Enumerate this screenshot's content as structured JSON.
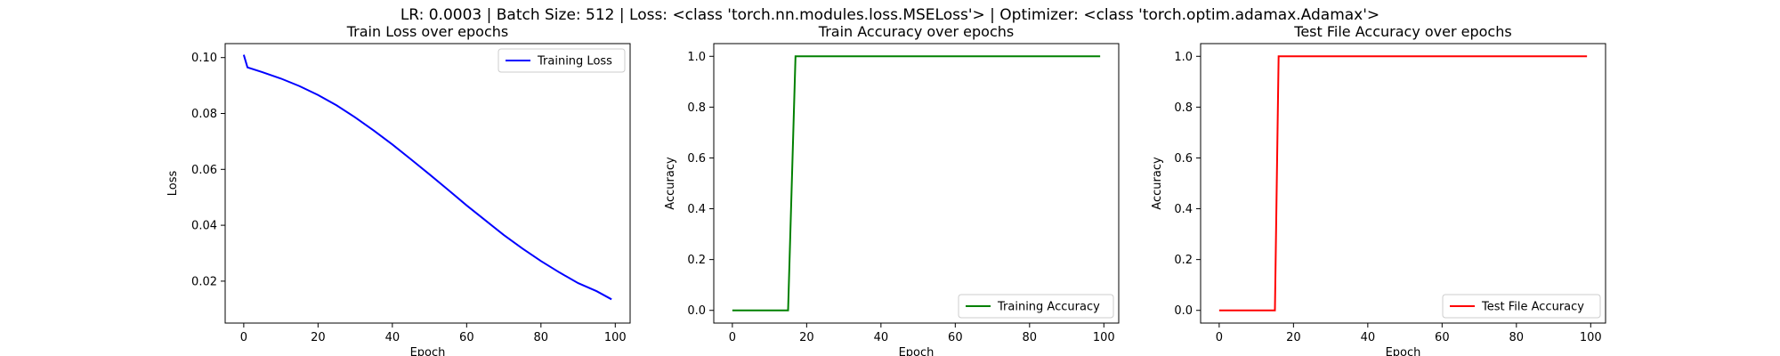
{
  "suptitle": "LR: 0.0003 | Batch Size: 512 | Loss: <class 'torch.nn.modules.loss.MSELoss'> | Optimizer: <class 'torch.optim.adamax.Adamax'>",
  "chart_data": [
    {
      "type": "line",
      "title": "Train Loss over epochs",
      "xlabel": "Epoch",
      "ylabel": "Loss",
      "xlim": [
        -5,
        104
      ],
      "ylim": [
        0.005,
        0.105
      ],
      "xticks": [
        0,
        20,
        40,
        60,
        80,
        100
      ],
      "yticks": [
        0.02,
        0.04,
        0.06,
        0.08,
        0.1
      ],
      "ytick_labels": [
        "0.02",
        "0.04",
        "0.06",
        "0.08",
        "0.10"
      ],
      "xtick_labels": [
        "0",
        "20",
        "40",
        "60",
        "80",
        "100"
      ],
      "legend_loc": "upper-right",
      "series": [
        {
          "name": "Training Loss",
          "color": "#0000ff",
          "x": [
            0,
            1,
            5,
            10,
            15,
            20,
            25,
            30,
            35,
            40,
            45,
            50,
            55,
            60,
            65,
            70,
            75,
            80,
            85,
            90,
            95,
            99
          ],
          "y": [
            0.101,
            0.0965,
            0.0948,
            0.0925,
            0.0898,
            0.0866,
            0.0829,
            0.0786,
            0.0739,
            0.0689,
            0.0636,
            0.0582,
            0.0527,
            0.0471,
            0.0418,
            0.0365,
            0.0317,
            0.0272,
            0.0231,
            0.0193,
            0.0164,
            0.0135
          ]
        }
      ]
    },
    {
      "type": "line",
      "title": "Train Accuracy over epochs",
      "xlabel": "Epoch",
      "ylabel": "Accuracy",
      "xlim": [
        -5,
        104
      ],
      "ylim": [
        -0.05,
        1.05
      ],
      "xticks": [
        0,
        20,
        40,
        60,
        80,
        100
      ],
      "yticks": [
        0.0,
        0.2,
        0.4,
        0.6,
        0.8,
        1.0
      ],
      "ytick_labels": [
        "0.0",
        "0.2",
        "0.4",
        "0.6",
        "0.8",
        "1.0"
      ],
      "xtick_labels": [
        "0",
        "20",
        "40",
        "60",
        "80",
        "100"
      ],
      "legend_loc": "lower-right",
      "series": [
        {
          "name": "Training Accuracy",
          "color": "#008000",
          "x": [
            0,
            15,
            17,
            99
          ],
          "y": [
            0,
            0,
            1,
            1
          ]
        }
      ]
    },
    {
      "type": "line",
      "title": "Test File Accuracy over epochs",
      "xlabel": "Epoch",
      "ylabel": "Accuracy",
      "xlim": [
        -5,
        104
      ],
      "ylim": [
        -0.05,
        1.05
      ],
      "xticks": [
        0,
        20,
        40,
        60,
        80,
        100
      ],
      "yticks": [
        0.0,
        0.2,
        0.4,
        0.6,
        0.8,
        1.0
      ],
      "ytick_labels": [
        "0.0",
        "0.2",
        "0.4",
        "0.6",
        "0.8",
        "1.0"
      ],
      "xtick_labels": [
        "0",
        "20",
        "40",
        "60",
        "80",
        "100"
      ],
      "legend_loc": "lower-right",
      "series": [
        {
          "name": "Test File Accuracy",
          "color": "#ff0000",
          "x": [
            0,
            15,
            16,
            99
          ],
          "y": [
            0,
            0,
            1,
            1
          ]
        }
      ]
    }
  ]
}
